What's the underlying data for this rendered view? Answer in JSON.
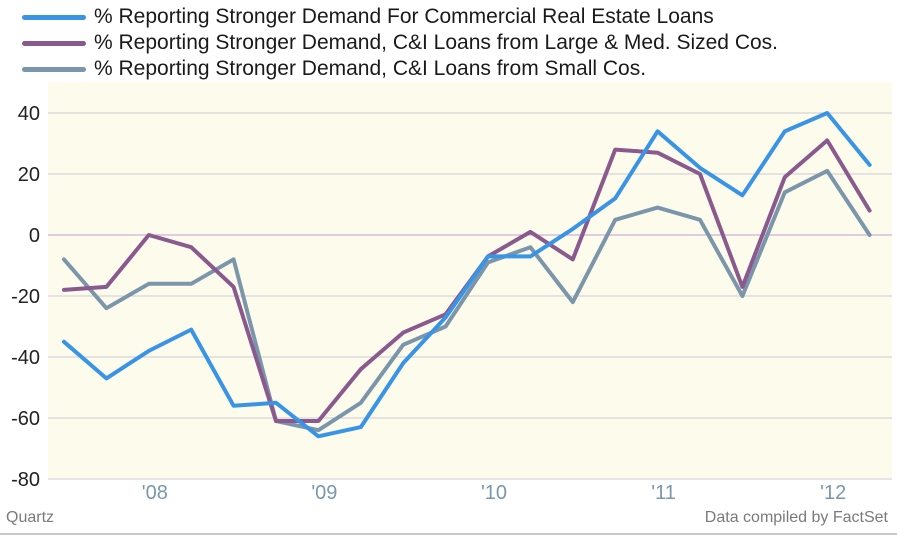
{
  "footer": {
    "source_left": "Quartz",
    "source_right": "Data compiled by FactSet"
  },
  "chart_data": {
    "type": "line",
    "title": "",
    "xlabel": "",
    "ylabel": "",
    "ylim": [
      -80,
      45
    ],
    "yticks": [
      40,
      20,
      0,
      -20,
      -40,
      -60,
      -80
    ],
    "ytick_labels": [
      "40",
      "20",
      "0",
      "-20",
      "-40",
      "-60",
      "-80"
    ],
    "x": [
      "2007Q2",
      "2007Q3",
      "2007Q4",
      "2008Q1",
      "2008Q2",
      "2008Q3",
      "2008Q4",
      "2009Q1",
      "2009Q2",
      "2009Q3",
      "2009Q4",
      "2010Q1",
      "2010Q2",
      "2010Q3",
      "2010Q4",
      "2011Q1",
      "2011Q2",
      "2011Q3",
      "2011Q4",
      "2012Q1"
    ],
    "xticks": [
      2,
      6,
      10,
      14,
      18
    ],
    "xtick_labels": [
      "'08",
      "'09",
      "'10",
      "'11",
      "'12"
    ],
    "grid": true,
    "legend_position": "top-left",
    "background": "#fdfcec",
    "series": [
      {
        "name": "% Reporting Stronger Demand For Commercial Real Estate Loans",
        "color": "#3a94e6",
        "values": [
          -35,
          -47,
          -38,
          -31,
          -56,
          -55,
          -66,
          -63,
          -42,
          -27,
          -7,
          -7,
          2,
          12,
          34,
          22,
          13,
          34,
          40,
          23
        ]
      },
      {
        "name": "% Reporting Stronger Demand, C&I Loans from Large & Med. Sized Cos.",
        "color": "#8a5a8e",
        "values": [
          -18,
          -17,
          0,
          -4,
          -17,
          -61,
          -61,
          -44,
          -32,
          -26,
          -7,
          1,
          -8,
          28,
          27,
          20,
          -17,
          19,
          31,
          8
        ]
      },
      {
        "name": "% Reporting Stronger Demand, C&I Loans from Small Cos.",
        "color": "#7b96ab",
        "values": [
          -8,
          -24,
          -16,
          -16,
          -8,
          -61,
          -64,
          -55,
          -36,
          -30,
          -9,
          -4,
          -22,
          5,
          9,
          5,
          -20,
          14,
          21,
          0
        ]
      }
    ]
  }
}
